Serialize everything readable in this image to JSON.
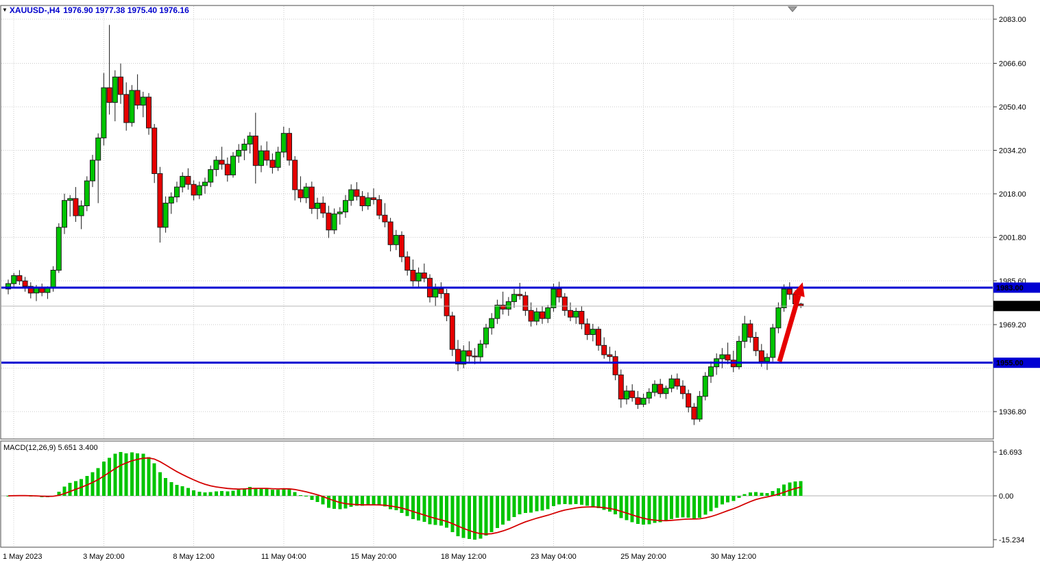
{
  "chart": {
    "header": {
      "menu_icon": "▼",
      "symbol_period": "XAUUSD-,H4",
      "ohlc_text": "1976.90 1977.38 1975.40 1976.16"
    },
    "colors": {
      "background": "#ffffff",
      "border": "#4a4a4a",
      "grid": "#c8c8c8",
      "bull": "#00c400",
      "bear": "#e60000",
      "candle_outline": "#1a1a1a",
      "level_blue": "#0000d2",
      "bid_line": "#b4b4b4",
      "bid_box": "#000000",
      "macd_histogram": "#00c400",
      "macd_signal": "#d40000",
      "arrow": "#e60000",
      "axis_text": "#000000"
    },
    "price_axis_labels": [
      {
        "price": 2083.0,
        "text": "2083.00"
      },
      {
        "price": 2066.6,
        "text": "2066.60"
      },
      {
        "price": 2050.4,
        "text": "2050.40"
      },
      {
        "price": 2034.2,
        "text": "2034.20"
      },
      {
        "price": 2018.0,
        "text": "2018.00"
      },
      {
        "price": 2001.8,
        "text": "2001.80"
      },
      {
        "price": 1985.6,
        "text": "1985.60"
      },
      {
        "price": 1969.2,
        "text": "1969.20"
      },
      {
        "price": 1936.8,
        "text": "1936.80"
      }
    ],
    "levels": [
      {
        "price": 1983.0,
        "text": "1983.00"
      },
      {
        "price": 1955.0,
        "text": "1955.00"
      }
    ],
    "bid": {
      "price": 1976.16,
      "text": "1976.16"
    },
    "macd_label": "MACD(12,26,9) 5.651 3.400",
    "macd_axis_labels": [
      {
        "value": 16.693,
        "text": "16.693"
      },
      {
        "value": 0,
        "text": "0.00"
      },
      {
        "value": -15.234,
        "text": "-15.234"
      }
    ]
  },
  "chart_data": {
    "type": "candlestick",
    "symbol": "XAUUSD-",
    "timeframe": "H4",
    "title": "XAUUSD-,H4 1976.90 1977.38 1975.40 1976.16",
    "main_ylim": [
      1926.6,
      2087.9
    ],
    "price_gridlines": [
      2083.0,
      2066.6,
      2050.4,
      2034.2,
      2018.0,
      2001.8,
      1985.6,
      1969.2,
      1953.0,
      1936.8
    ],
    "time_labels": [
      {
        "bar": 1,
        "text": "1 May 2023"
      },
      {
        "bar": 17,
        "text": "3 May 20:00"
      },
      {
        "bar": 33,
        "text": "8 May 12:00"
      },
      {
        "bar": 49,
        "text": "11 May 04:00"
      },
      {
        "bar": 65,
        "text": "15 May 20:00"
      },
      {
        "bar": 81,
        "text": "18 May 12:00"
      },
      {
        "bar": 97,
        "text": "23 May 04:00"
      },
      {
        "bar": 113,
        "text": "25 May 20:00"
      },
      {
        "bar": 129,
        "text": "30 May 12:00"
      }
    ],
    "candles": [
      [
        1982.5,
        1986.0,
        1980.5,
        1984.5
      ],
      [
        1984.5,
        1988.5,
        1983.0,
        1987.5
      ],
      [
        1987.5,
        1989.5,
        1984.0,
        1985.5
      ],
      [
        1985.5,
        1987.0,
        1981.5,
        1983.5
      ],
      [
        1983.5,
        1985.0,
        1979.0,
        1981.0
      ],
      [
        1981.0,
        1984.0,
        1978.0,
        1983.0
      ],
      [
        1983.0,
        1984.5,
        1979.8,
        1981.2
      ],
      [
        1981.2,
        1983.5,
        1978.8,
        1982.8
      ],
      [
        1982.8,
        1991.0,
        1981.5,
        1989.5
      ],
      [
        1989.5,
        2007.0,
        1988.5,
        2005.5
      ],
      [
        2005.5,
        2018.0,
        2003.0,
        2015.5
      ],
      [
        2015.5,
        2017.5,
        2009.5,
        2016.2
      ],
      [
        2016.2,
        2020.5,
        2007.5,
        2009.8
      ],
      [
        2009.8,
        2015.5,
        2004.8,
        2013.5
      ],
      [
        2013.5,
        2024.5,
        2011.5,
        2022.8
      ],
      [
        2022.8,
        2032.5,
        2020.5,
        2030.5
      ],
      [
        2030.5,
        2040.5,
        2014.5,
        2038.8
      ],
      [
        2038.8,
        2063.0,
        2036.0,
        2057.5
      ],
      [
        2057.5,
        2080.9,
        2047.5,
        2052.0
      ],
      [
        2052.0,
        2064.0,
        2045.0,
        2061.5
      ],
      [
        2061.5,
        2066.5,
        2051.5,
        2055.0
      ],
      [
        2055.0,
        2059.5,
        2041.5,
        2044.5
      ],
      [
        2044.5,
        2058.5,
        2043.0,
        2056.5
      ],
      [
        2056.5,
        2062.5,
        2049.5,
        2051.0
      ],
      [
        2051.0,
        2056.0,
        2046.5,
        2054.0
      ],
      [
        2054.0,
        2055.5,
        2040.0,
        2042.5
      ],
      [
        2042.5,
        2044.0,
        2022.0,
        2025.5
      ],
      [
        2025.5,
        2028.0,
        1999.8,
        2005.5
      ],
      [
        2005.5,
        2017.0,
        2003.5,
        2014.5
      ],
      [
        2014.5,
        2018.5,
        2010.5,
        2016.8
      ],
      [
        2016.8,
        2022.5,
        2014.8,
        2020.5
      ],
      [
        2020.5,
        2026.0,
        2018.5,
        2024.5
      ],
      [
        2024.5,
        2027.5,
        2019.5,
        2021.5
      ],
      [
        2021.5,
        2023.0,
        2015.5,
        2017.5
      ],
      [
        2017.5,
        2022.5,
        2016.0,
        2021.0
      ],
      [
        2021.0,
        2024.0,
        2018.0,
        2022.3
      ],
      [
        2022.3,
        2028.5,
        2020.5,
        2027.0
      ],
      [
        2027.0,
        2032.0,
        2024.5,
        2030.5
      ],
      [
        2030.5,
        2035.5,
        2027.0,
        2029.0
      ],
      [
        2029.0,
        2031.5,
        2022.5,
        2025.0
      ],
      [
        2025.0,
        2033.5,
        2024.0,
        2032.0
      ],
      [
        2032.0,
        2036.5,
        2029.5,
        2034.2
      ],
      [
        2034.2,
        2038.5,
        2030.5,
        2036.5
      ],
      [
        2036.5,
        2041.0,
        2033.0,
        2039.5
      ],
      [
        2039.5,
        2048.2,
        2021.8,
        2028.5
      ],
      [
        2028.5,
        2036.0,
        2026.0,
        2034.0
      ],
      [
        2034.0,
        2037.5,
        2028.5,
        2030.5
      ],
      [
        2030.5,
        2033.0,
        2025.5,
        2027.8
      ],
      [
        2027.8,
        2035.5,
        2026.5,
        2033.5
      ],
      [
        2033.5,
        2043.0,
        2031.5,
        2040.5
      ],
      [
        2040.5,
        2042.5,
        2028.5,
        2030.5
      ],
      [
        2030.5,
        2032.0,
        2015.5,
        2019.5
      ],
      [
        2019.5,
        2024.5,
        2014.8,
        2016.5
      ],
      [
        2016.5,
        2022.0,
        2014.5,
        2020.5
      ],
      [
        2020.5,
        2022.5,
        2010.5,
        2012.5
      ],
      [
        2012.5,
        2016.5,
        2008.5,
        2014.5
      ],
      [
        2014.5,
        2017.0,
        2009.0,
        2010.8
      ],
      [
        2010.8,
        2013.5,
        2001.5,
        2004.5
      ],
      [
        2004.5,
        2012.5,
        2003.0,
        2010.5
      ],
      [
        2010.5,
        2013.0,
        2006.5,
        2011.2
      ],
      [
        2011.2,
        2017.5,
        2009.0,
        2015.5
      ],
      [
        2015.5,
        2021.5,
        2013.5,
        2019.5
      ],
      [
        2019.5,
        2022.3,
        2015.5,
        2017.0
      ],
      [
        2017.0,
        2019.0,
        2011.5,
        2013.5
      ],
      [
        2013.5,
        2018.5,
        2012.0,
        2016.5
      ],
      [
        2016.5,
        2020.0,
        2014.0,
        2015.8
      ],
      [
        2015.8,
        2017.5,
        2008.5,
        2010.0
      ],
      [
        2010.0,
        2014.5,
        2005.5,
        2007.5
      ],
      [
        2007.5,
        2009.0,
        1996.5,
        1999.0
      ],
      [
        1999.0,
        2004.5,
        1997.0,
        2002.5
      ],
      [
        2002.5,
        2004.0,
        1992.5,
        1994.5
      ],
      [
        1994.5,
        1996.5,
        1987.5,
        1989.5
      ],
      [
        1989.5,
        1993.5,
        1983.5,
        1985.5
      ],
      [
        1985.5,
        1990.5,
        1983.0,
        1988.5
      ],
      [
        1988.5,
        1992.0,
        1985.0,
        1986.5
      ],
      [
        1986.5,
        1988.0,
        1977.5,
        1979.5
      ],
      [
        1979.5,
        1984.5,
        1976.0,
        1982.5
      ],
      [
        1982.5,
        1985.0,
        1979.0,
        1980.8
      ],
      [
        1980.8,
        1982.5,
        1970.5,
        1972.5
      ],
      [
        1972.5,
        1974.0,
        1957.5,
        1960.0
      ],
      [
        1960.0,
        1963.5,
        1951.9,
        1954.5
      ],
      [
        1954.5,
        1961.5,
        1953.0,
        1959.5
      ],
      [
        1959.5,
        1963.0,
        1955.5,
        1957.5
      ],
      [
        1957.5,
        1960.5,
        1954.5,
        1957.2
      ],
      [
        1957.2,
        1963.5,
        1955.5,
        1962.0
      ],
      [
        1962.0,
        1969.5,
        1960.5,
        1968.0
      ],
      [
        1968.0,
        1973.5,
        1965.5,
        1971.5
      ],
      [
        1971.5,
        1978.5,
        1969.5,
        1976.5
      ],
      [
        1976.5,
        1981.5,
        1973.0,
        1975.0
      ],
      [
        1975.0,
        1979.5,
        1972.5,
        1977.8
      ],
      [
        1977.8,
        1982.5,
        1975.5,
        1980.5
      ],
      [
        1980.5,
        1984.8,
        1978.5,
        1980.0
      ],
      [
        1980.0,
        1981.5,
        1972.5,
        1974.5
      ],
      [
        1974.5,
        1977.5,
        1968.5,
        1970.5
      ],
      [
        1970.5,
        1975.5,
        1969.0,
        1974.0
      ],
      [
        1974.0,
        1976.0,
        1969.5,
        1971.5
      ],
      [
        1971.5,
        1976.5,
        1969.8,
        1975.5
      ],
      [
        1975.5,
        1984.5,
        1974.0,
        1982.5
      ],
      [
        1982.5,
        1985.2,
        1977.5,
        1979.5
      ],
      [
        1979.5,
        1981.0,
        1972.5,
        1974.5
      ],
      [
        1974.5,
        1977.5,
        1970.5,
        1972.0
      ],
      [
        1972.0,
        1975.5,
        1969.5,
        1974.2
      ],
      [
        1974.2,
        1976.0,
        1967.5,
        1969.5
      ],
      [
        1969.5,
        1971.5,
        1963.5,
        1965.5
      ],
      [
        1965.5,
        1969.5,
        1963.0,
        1967.5
      ],
      [
        1967.5,
        1968.5,
        1959.5,
        1961.5
      ],
      [
        1961.5,
        1964.5,
        1956.5,
        1958.0
      ],
      [
        1958.0,
        1961.0,
        1955.5,
        1957.3
      ],
      [
        1957.3,
        1959.5,
        1948.5,
        1950.5
      ],
      [
        1950.5,
        1952.5,
        1938.2,
        1941.5
      ],
      [
        1941.5,
        1946.5,
        1939.5,
        1944.5
      ],
      [
        1944.5,
        1947.0,
        1940.5,
        1942.0
      ],
      [
        1942.0,
        1944.5,
        1937.8,
        1939.5
      ],
      [
        1939.5,
        1943.5,
        1938.5,
        1941.8
      ],
      [
        1941.8,
        1945.5,
        1939.8,
        1944.0
      ],
      [
        1944.0,
        1948.5,
        1942.5,
        1947.0
      ],
      [
        1947.0,
        1949.0,
        1942.0,
        1943.5
      ],
      [
        1943.5,
        1946.5,
        1941.5,
        1945.5
      ],
      [
        1945.5,
        1950.5,
        1944.0,
        1949.0
      ],
      [
        1949.0,
        1951.0,
        1945.0,
        1946.3
      ],
      [
        1946.3,
        1948.5,
        1941.5,
        1943.5
      ],
      [
        1943.5,
        1945.0,
        1936.5,
        1938.5
      ],
      [
        1938.5,
        1940.0,
        1931.8,
        1934.0
      ],
      [
        1934.0,
        1944.5,
        1933.0,
        1942.5
      ],
      [
        1942.5,
        1951.5,
        1941.0,
        1950.0
      ],
      [
        1950.0,
        1955.5,
        1947.5,
        1953.5
      ],
      [
        1953.5,
        1958.5,
        1950.5,
        1956.5
      ],
      [
        1956.5,
        1960.5,
        1953.0,
        1958.0
      ],
      [
        1958.0,
        1962.5,
        1954.5,
        1956.0
      ],
      [
        1956.0,
        1959.5,
        1951.5,
        1953.5
      ],
      [
        1953.5,
        1965.0,
        1952.5,
        1963.0
      ],
      [
        1963.0,
        1972.5,
        1960.5,
        1969.5
      ],
      [
        1969.5,
        1971.0,
        1962.5,
        1964.5
      ],
      [
        1964.5,
        1966.5,
        1957.5,
        1959.5
      ],
      [
        1959.5,
        1962.0,
        1953.5,
        1955.5
      ],
      [
        1955.5,
        1958.5,
        1952.3,
        1957.0
      ],
      [
        1957.0,
        1969.5,
        1955.5,
        1968.0
      ],
      [
        1968.0,
        1977.5,
        1966.0,
        1975.5
      ],
      [
        1975.5,
        1984.2,
        1974.0,
        1982.5
      ],
      [
        1982.5,
        1985.0,
        1978.5,
        1980.5
      ],
      [
        1980.5,
        1982.0,
        1975.4,
        1977.0
      ],
      [
        1976.9,
        1977.4,
        1975.4,
        1976.2
      ]
    ],
    "macd": {
      "params": [
        12,
        26,
        9
      ],
      "current_macd": 5.651,
      "current_signal": 3.4,
      "ylim": [
        -15.234,
        16.693
      ]
    },
    "arrow": {
      "from_bar": 137.2,
      "from_price": 1955.5,
      "to_bar": 141.3,
      "to_price": 1985.0
    }
  }
}
